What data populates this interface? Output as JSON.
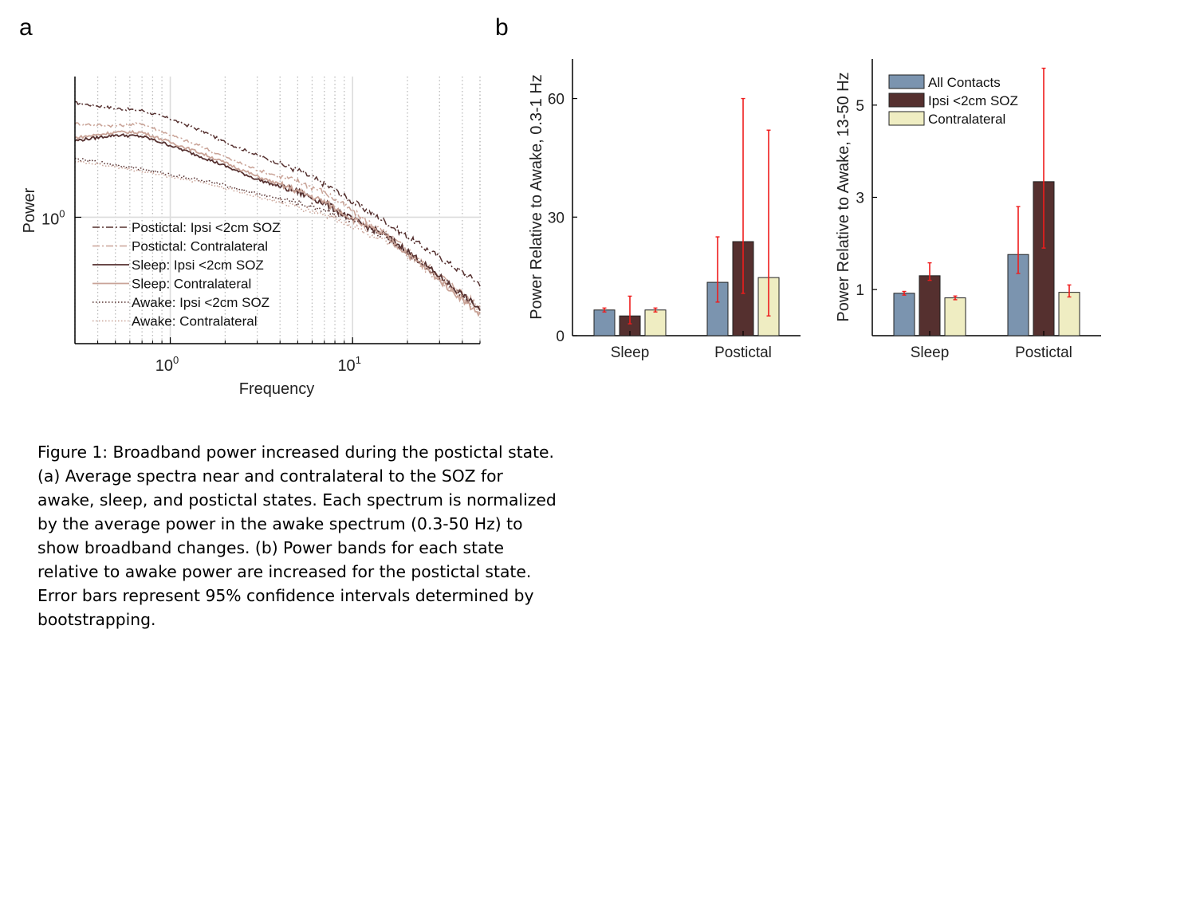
{
  "panel_labels": {
    "a": "a",
    "b": "b"
  },
  "caption": "Figure 1: Broadband power increased during the postictal state. (a) Average spectra near and contralateral to the SOZ for awake, sleep, and postictal states. Each spectrum is normalized by the average power in the awake spectrum (0.3-50 Hz) to show broadband changes. (b) Power bands for each state relative to awake power are increased for the postictal state. Error bars represent 95% confidence intervals determined by bootstrapping.",
  "colors": {
    "ipsi": "#55302f",
    "contra": "#c9a397",
    "all": "#7b94af",
    "contra_bar": "#efedc2",
    "error": "#ee1c1c"
  },
  "chart_data": [
    {
      "type": "line",
      "panel": "a",
      "title": "",
      "xlabel": "Frequency",
      "ylabel": "Power",
      "xscale": "log",
      "yscale": "log",
      "xlim": [
        0.3,
        50
      ],
      "ylim": [
        0.2,
        6.0
      ],
      "x_ticks": [
        {
          "value": 1,
          "base": "10",
          "exp": "0"
        },
        {
          "value": 10,
          "base": "10",
          "exp": "1"
        }
      ],
      "y_ticks": [
        {
          "value": 1,
          "base": "10",
          "exp": "0"
        }
      ],
      "grid": true,
      "legend_position": "bottom-left",
      "series": [
        {
          "name": "Postictal: Ipsi <2cm SOZ",
          "style": "dashdot",
          "color": "#55302f",
          "x": [
            0.3,
            0.5,
            0.7,
            1,
            1.5,
            2,
            3,
            5,
            7,
            10,
            15,
            20,
            30,
            50
          ],
          "y": [
            4.3,
            4.0,
            3.9,
            3.5,
            3.0,
            2.6,
            2.2,
            1.82,
            1.53,
            1.22,
            0.95,
            0.78,
            0.6,
            0.43
          ]
        },
        {
          "name": "Postictal: Contralateral",
          "style": "dashdot",
          "color": "#c9a397",
          "x": [
            0.3,
            0.5,
            0.7,
            1,
            1.5,
            2,
            3,
            5,
            7,
            10,
            15,
            20,
            30,
            50
          ],
          "y": [
            3.3,
            3.2,
            3.3,
            2.85,
            2.45,
            2.15,
            1.83,
            1.58,
            1.38,
            1.08,
            0.82,
            0.66,
            0.48,
            0.32
          ]
        },
        {
          "name": "Sleep: Ipsi <2cm SOZ",
          "style": "solid",
          "color": "#55302f",
          "x": [
            0.3,
            0.5,
            0.7,
            1,
            1.5,
            2,
            3,
            5,
            7,
            10,
            15,
            20,
            30,
            50
          ],
          "y": [
            2.65,
            2.85,
            2.8,
            2.5,
            2.15,
            1.92,
            1.62,
            1.38,
            1.2,
            0.97,
            0.8,
            0.65,
            0.47,
            0.31
          ]
        },
        {
          "name": "Sleep: Contralateral",
          "style": "solid",
          "color": "#c9a397",
          "x": [
            0.3,
            0.5,
            0.7,
            1,
            1.5,
            2,
            3,
            5,
            7,
            10,
            15,
            20,
            30,
            50
          ],
          "y": [
            2.75,
            2.95,
            2.95,
            2.6,
            2.25,
            2.0,
            1.68,
            1.4,
            1.22,
            0.98,
            0.79,
            0.63,
            0.45,
            0.29
          ]
        },
        {
          "name": "Awake: Ipsi <2cm SOZ",
          "style": "dotted",
          "color": "#55302f",
          "x": [
            0.3,
            0.5,
            0.7,
            1,
            1.5,
            2,
            3,
            5,
            7,
            10,
            15,
            20,
            30,
            50
          ],
          "y": [
            2.1,
            1.95,
            1.85,
            1.72,
            1.6,
            1.5,
            1.35,
            1.2,
            1.1,
            0.95,
            0.78,
            0.64,
            0.47,
            0.31
          ]
        },
        {
          "name": "Awake: Contralateral",
          "style": "dotted",
          "color": "#c9a397",
          "x": [
            0.3,
            0.5,
            0.7,
            1,
            1.5,
            2,
            3,
            5,
            7,
            10,
            15,
            20,
            30,
            50
          ],
          "y": [
            2.05,
            1.9,
            1.8,
            1.68,
            1.56,
            1.45,
            1.3,
            1.14,
            1.04,
            0.9,
            0.74,
            0.61,
            0.45,
            0.3
          ]
        }
      ]
    },
    {
      "type": "bar",
      "panel": "b-left",
      "title": "",
      "xlabel": "",
      "ylabel": "Power Relative to Awake, 0.3-1 Hz",
      "ylim": [
        0,
        70
      ],
      "yticks": [
        0,
        30,
        60
      ],
      "categories": [
        "Sleep",
        "Postictal"
      ],
      "series": [
        {
          "name": "All Contacts",
          "color": "#7b94af",
          "values": [
            6.5,
            13.5
          ],
          "err_low": [
            6.0,
            8.5
          ],
          "err_high": [
            7.0,
            25.0
          ]
        },
        {
          "name": "Ipsi <2cm SOZ",
          "color": "#55302f",
          "values": [
            5.0,
            23.8
          ],
          "err_low": [
            3.0,
            10.7
          ],
          "err_high": [
            10.0,
            60.0
          ]
        },
        {
          "name": "Contralateral",
          "color": "#efedc2",
          "values": [
            6.5,
            14.7
          ],
          "err_low": [
            6.0,
            5.0
          ],
          "err_high": [
            7.0,
            52.0
          ]
        }
      ]
    },
    {
      "type": "bar",
      "panel": "b-right",
      "title": "",
      "xlabel": "",
      "ylabel": "Power Relative to Awake, 13-50 Hz",
      "ylim": [
        0,
        6
      ],
      "yticks": [
        1,
        3,
        5
      ],
      "legend_position": "top-left",
      "categories": [
        "Sleep",
        "Postictal"
      ],
      "series": [
        {
          "name": "All Contacts",
          "color": "#7b94af",
          "values": [
            0.92,
            1.76
          ],
          "err_low": [
            0.88,
            1.35
          ],
          "err_high": [
            0.96,
            2.8
          ]
        },
        {
          "name": "Ipsi <2cm SOZ",
          "color": "#55302f",
          "values": [
            1.3,
            3.34
          ],
          "err_low": [
            1.2,
            1.9
          ],
          "err_high": [
            1.58,
            5.8
          ]
        },
        {
          "name": "Contralateral",
          "color": "#efedc2",
          "values": [
            0.82,
            0.94
          ],
          "err_low": [
            0.78,
            0.84
          ],
          "err_high": [
            0.86,
            1.1
          ]
        }
      ]
    }
  ]
}
